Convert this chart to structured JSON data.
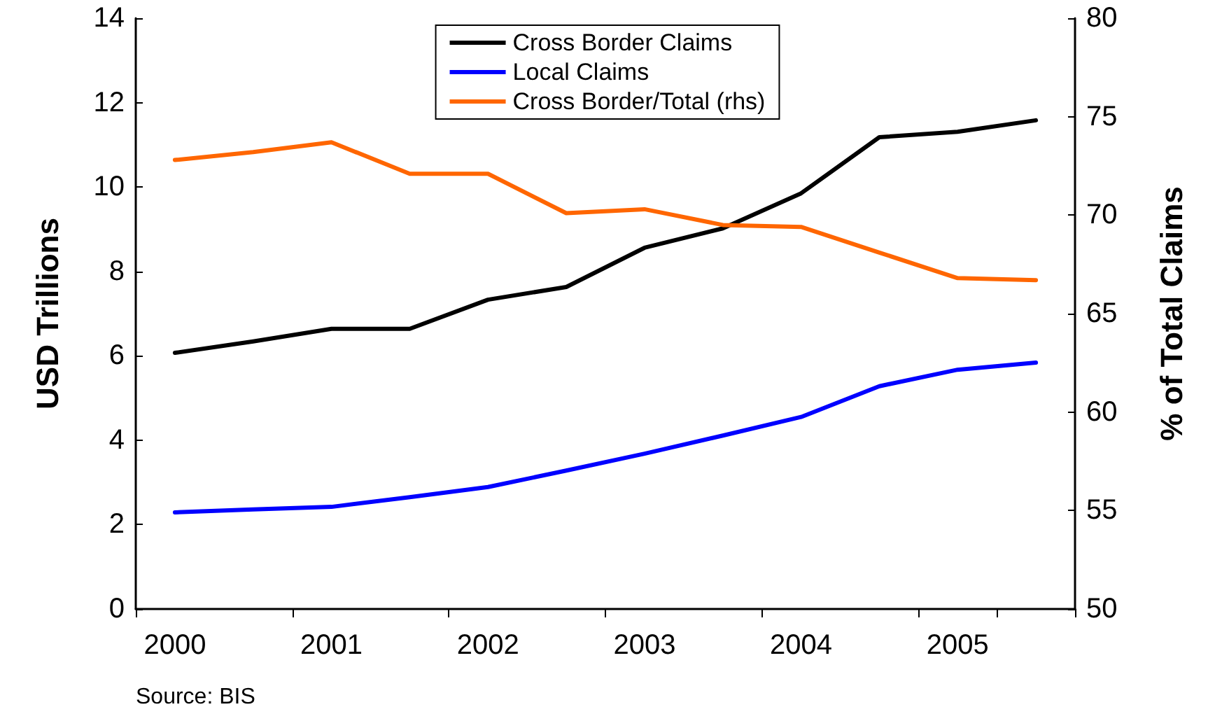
{
  "chart_data": {
    "type": "line",
    "ylabel": "USD Trillions",
    "y2label": "% of Total Claims",
    "categories": [
      "2000",
      null,
      "2001",
      null,
      "2002",
      null,
      "2003",
      null,
      "2004",
      null,
      "2005",
      null
    ],
    "series": [
      {
        "name": "Cross Border Claims",
        "color": "#000000",
        "values": [
          6.07,
          6.34,
          6.64,
          6.64,
          7.33,
          7.63,
          8.56,
          9.02,
          9.85,
          11.18,
          11.31,
          11.58
        ]
      },
      {
        "name": "Local Claims",
        "color": "#0000ff",
        "values": [
          2.29,
          2.36,
          2.42,
          2.65,
          2.89,
          3.28,
          3.68,
          4.11,
          4.55,
          5.28,
          5.67,
          5.84
        ]
      },
      {
        "name": "Cross Border/Total (rhs)",
        "color": "#ff6600",
        "axis": "y2",
        "values": [
          72.8,
          73.2,
          73.7,
          72.1,
          72.1,
          70.1,
          70.3,
          69.5,
          69.4,
          68.1,
          66.8,
          66.7
        ]
      }
    ],
    "ylim": [
      0,
      14
    ],
    "yticks": [
      0,
      2,
      4,
      6,
      8,
      10,
      12,
      14
    ],
    "y2lim": [
      50,
      80
    ],
    "y2ticks": [
      50,
      55,
      60,
      65,
      70,
      75,
      80
    ],
    "grid": false,
    "legend": "top",
    "marker": "none",
    "line_style": "solid",
    "annotations": [
      "Source: BIS"
    ]
  }
}
